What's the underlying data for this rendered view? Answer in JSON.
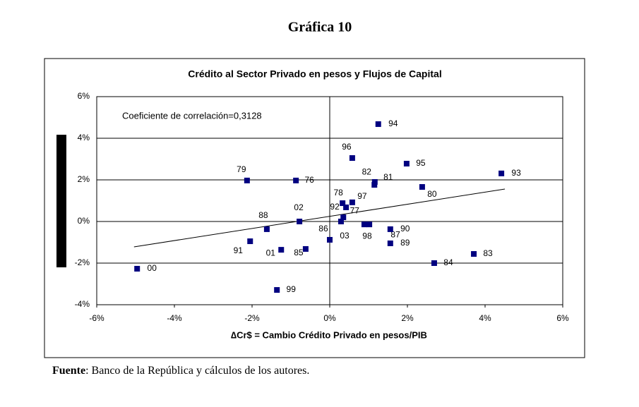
{
  "header": {
    "title": "Gráfica 10"
  },
  "chart_data": {
    "type": "scatter",
    "title": "Crédito al Sector Privado en pesos y Flujos de Capital",
    "x_label": "∆Cr$ = Cambio Crédito Privado en pesos/PIB",
    "annotation": "Coeficiente de correlación=0,3128",
    "series": [
      {
        "color": "#000080",
        "labels": [
          "00",
          "79",
          "76",
          "88",
          "91",
          "01",
          "85",
          "02",
          "99",
          "03",
          "86",
          "96",
          "94",
          "95",
          "93",
          "82",
          "81",
          "80",
          "78",
          "97",
          "92",
          "77",
          "98",
          "87",
          "90",
          "89",
          "84",
          "83"
        ],
        "x": [
          -4.96,
          -2.13,
          -0.87,
          -1.62,
          -2.05,
          -1.25,
          -0.62,
          -0.78,
          -1.36,
          0,
          0.29,
          0.58,
          1.25,
          1.98,
          4.42,
          1.15,
          1.16,
          2.38,
          0.33,
          0.58,
          0.42,
          0.35,
          0.89,
          1.02,
          1.56,
          1.56,
          2.69,
          3.71
        ],
        "values": [
          -2.27,
          1.97,
          1.97,
          -0.37,
          -0.95,
          -1.36,
          -1.32,
          0,
          -3.29,
          -0.88,
          0,
          3.05,
          4.68,
          2.78,
          2.31,
          1.76,
          1.9,
          1.66,
          0.88,
          0.92,
          0.68,
          0.2,
          -0.14,
          -0.14,
          -0.37,
          -1.05,
          -2.0,
          -1.56
        ]
      }
    ],
    "trendline": {
      "color": "#000000",
      "x": [
        -5.04,
        4.51
      ],
      "values": [
        -1.22,
        1.56
      ]
    },
    "xlim": [
      -6,
      6
    ],
    "xticks": [
      {
        "value": -6,
        "label": "-6%"
      },
      {
        "value": -4,
        "label": "-4%"
      },
      {
        "value": -2,
        "label": "-2%"
      },
      {
        "value": 0,
        "label": "0%"
      },
      {
        "value": 2,
        "label": "2%"
      },
      {
        "value": 4,
        "label": "4%"
      },
      {
        "value": 6,
        "label": "6%"
      }
    ],
    "ylim": [
      -4,
      6
    ],
    "yticks": [
      {
        "value": -4,
        "label": "-4%"
      },
      {
        "value": -2,
        "label": "-2%"
      },
      {
        "value": 0,
        "label": "0%"
      },
      {
        "value": 2,
        "label": "2%"
      },
      {
        "value": 4,
        "label": "4%"
      },
      {
        "value": 6,
        "label": "6%"
      }
    ],
    "grid": true
  },
  "footer": {
    "source_label": "Fuente",
    "source_text": ": Banco de la República y cálculos de los autores."
  }
}
